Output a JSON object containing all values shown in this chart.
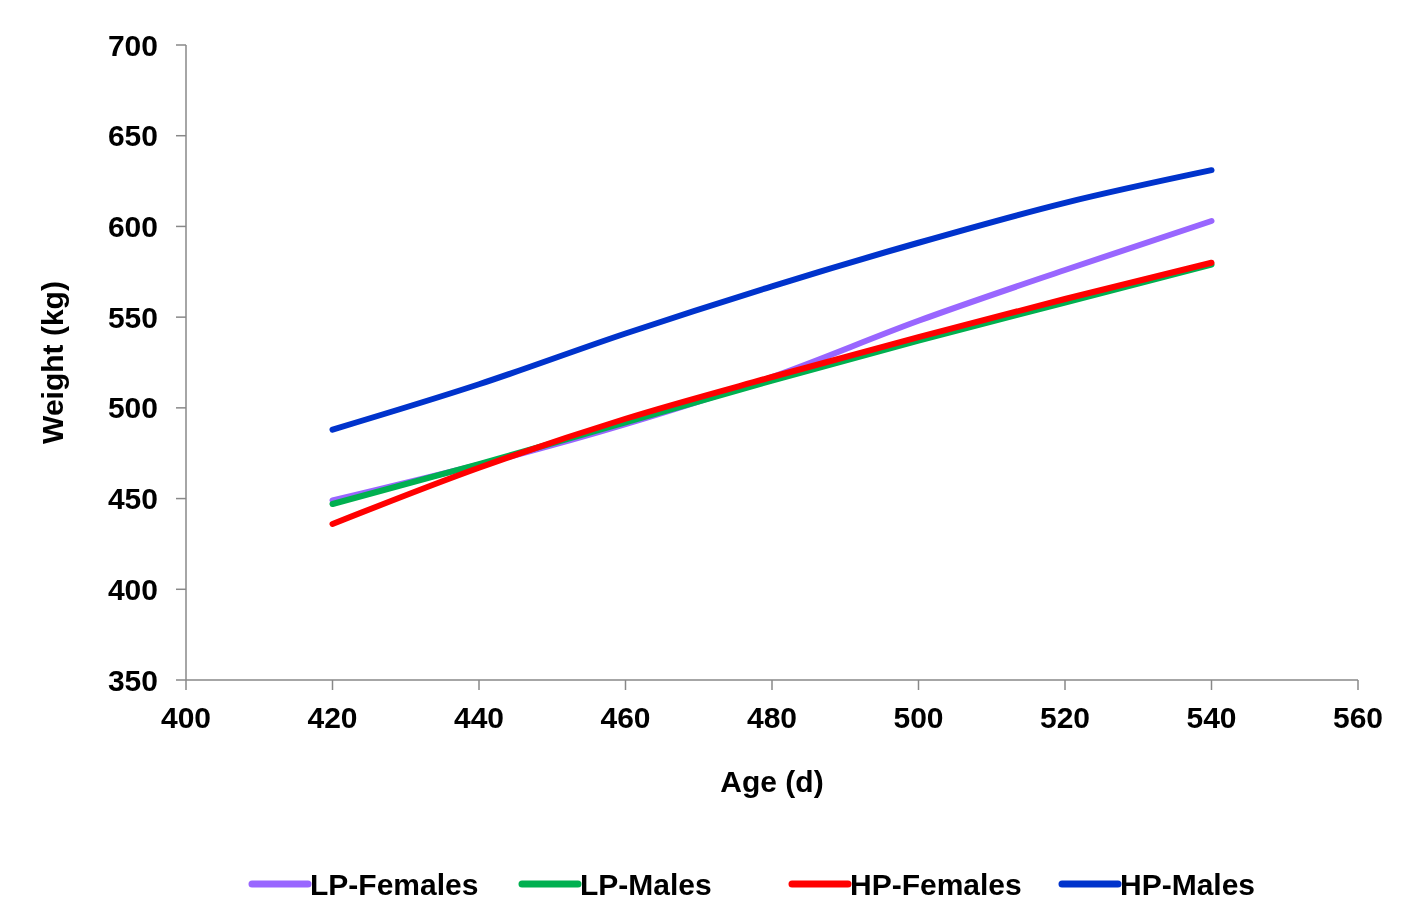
{
  "chart_data": {
    "type": "line",
    "xlabel": "Age (d)",
    "ylabel": "Weight (kg)",
    "x": [
      420,
      440,
      460,
      480,
      500,
      520,
      540
    ],
    "xlim": [
      400,
      560
    ],
    "xticks": [
      400,
      420,
      440,
      460,
      480,
      500,
      520,
      540,
      560
    ],
    "ylim": [
      350,
      700
    ],
    "yticks": [
      350,
      400,
      450,
      500,
      550,
      600,
      650,
      700
    ],
    "grid": false,
    "legend": "bottom",
    "marker": "none",
    "line_style": "solid",
    "series": [
      {
        "name": "LP-Females",
        "color": "#9966ff",
        "values": [
          449,
          null,
          491,
          517,
          548,
          576,
          603
        ]
      },
      {
        "name": "LP-Males",
        "color": "#00b050",
        "values": [
          447,
          469,
          492,
          515,
          537,
          558,
          579
        ]
      },
      {
        "name": "HP-Females",
        "color": "#ff0000",
        "values": [
          436,
          467,
          494,
          517,
          539,
          560,
          580
        ]
      },
      {
        "name": "HP-Males",
        "color": "#0033cc",
        "values": [
          488,
          513,
          541,
          567,
          591,
          613,
          631
        ]
      }
    ]
  }
}
